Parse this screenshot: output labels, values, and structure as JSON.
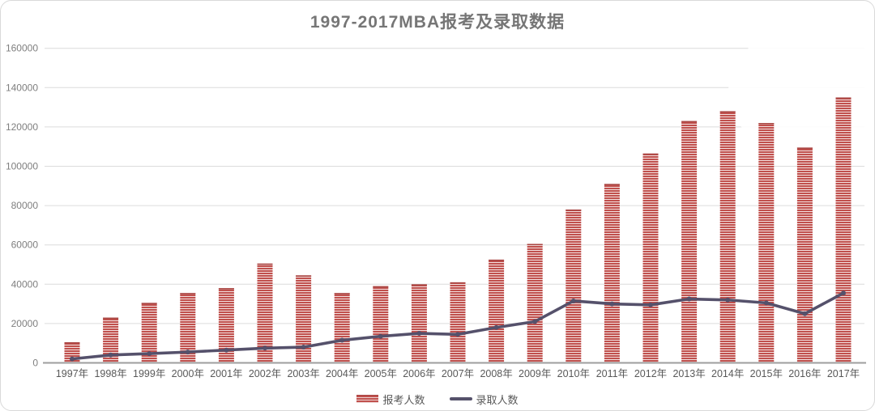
{
  "title": "1997-2017MBA报考及录取数据",
  "colors": {
    "bar_fill": "#c0504d",
    "bar_stripe": "#f3e0df",
    "bar_top": "#a94744",
    "line": "#55516b",
    "grid": "#dcdcdc",
    "axis": "#9e9e9e",
    "tick_text": "#7f7f7f",
    "xlabel_text": "#595959"
  },
  "chart_data": {
    "type": "bar",
    "title": "1997-2017MBA报考及录取数据",
    "xlabel": "",
    "ylabel": "",
    "ylim": [
      0,
      160000
    ],
    "ytick_step": 20000,
    "ytick_labels": [
      "0",
      "20000",
      "40000",
      "60000",
      "80000",
      "100000",
      "120000",
      "140000",
      "160000"
    ],
    "grid": "horizontal",
    "legend_position": "bottom",
    "categories": [
      "1997年",
      "1998年",
      "1999年",
      "2000年",
      "2001年",
      "2002年",
      "2003年",
      "2004年",
      "2005年",
      "2006年",
      "2007年",
      "2008年",
      "2009年",
      "2010年",
      "2011年",
      "2012年",
      "2013年",
      "2014年",
      "2015年",
      "2016年",
      "2017年"
    ],
    "series": [
      {
        "name": "报考人数",
        "type": "bar",
        "values": [
          10500,
          23000,
          30500,
          35500,
          38000,
          50500,
          44500,
          35500,
          39000,
          40000,
          41000,
          52500,
          60500,
          78000,
          91000,
          106500,
          123000,
          128000,
          122000,
          109500,
          135000
        ]
      },
      {
        "name": "录取人数",
        "type": "line",
        "values": [
          2000,
          4000,
          4700,
          5500,
          6500,
          7500,
          8000,
          11500,
          13500,
          15000,
          14500,
          18000,
          21000,
          31500,
          30000,
          29500,
          32500,
          32000,
          30500,
          25000,
          35500
        ]
      }
    ]
  },
  "legend": {
    "items": [
      {
        "label": "报考人数",
        "swatch": "striped-bar-swatch"
      },
      {
        "label": "录取人数",
        "swatch": "line-swatch"
      }
    ]
  }
}
